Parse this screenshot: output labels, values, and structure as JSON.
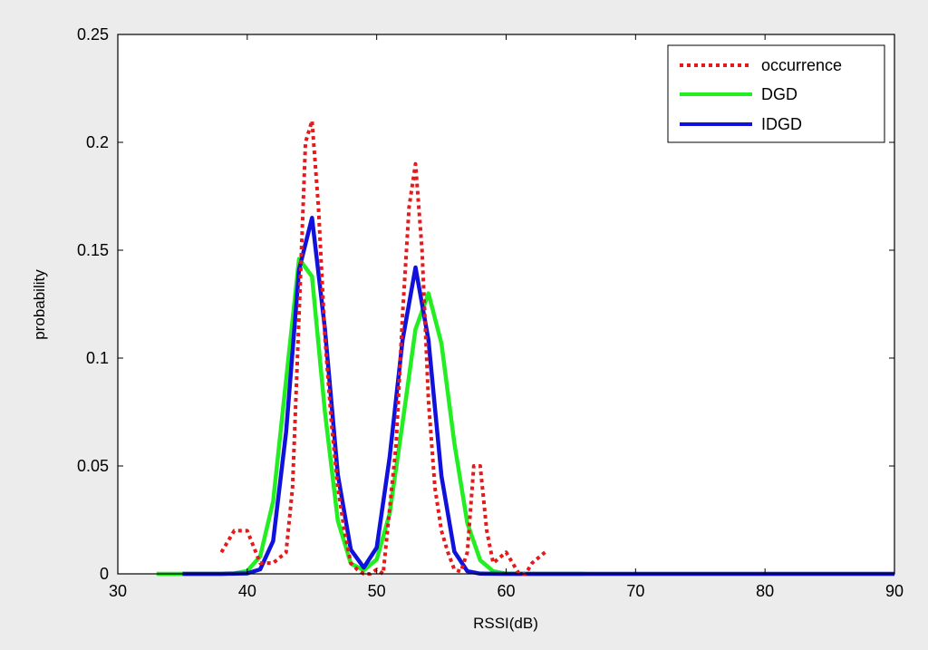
{
  "colors": {
    "figure_background": "#ececec",
    "axes_background": "#ffffff",
    "occurrence": "#e41a1c",
    "DGD": "#22ee22",
    "IDGD": "#1111dd"
  },
  "chart_data": {
    "type": "line",
    "xlabel": "RSSI(dB)",
    "ylabel": "probability",
    "xlim": [
      30,
      90
    ],
    "ylim": [
      0,
      0.25
    ],
    "xticks": [
      30,
      40,
      50,
      60,
      70,
      80,
      90
    ],
    "yticks": [
      0,
      0.05,
      0.1,
      0.15,
      0.2,
      0.25
    ],
    "xtick_labels": [
      "30",
      "40",
      "50",
      "60",
      "70",
      "80",
      "90"
    ],
    "ytick_labels": [
      "0",
      "0.05",
      "0.1",
      "0.15",
      "0.2",
      "0.25"
    ],
    "grid": false,
    "legend_position": "top-right",
    "series": [
      {
        "name": "occurrence",
        "style": "dotted",
        "x": [
          38,
          39,
          40,
          41,
          42,
          43,
          43.5,
          44,
          44.5,
          45,
          45.5,
          46,
          46.5,
          47,
          47.5,
          48,
          48.5,
          49,
          49.5,
          50,
          50.5,
          51,
          51.5,
          52,
          52.5,
          53,
          53.5,
          54,
          54.5,
          55,
          55.5,
          56,
          56.5,
          57,
          57.5,
          58,
          58.5,
          59,
          60,
          60.5,
          61,
          61.5,
          62,
          63
        ],
        "y": [
          0.01,
          0.02,
          0.02,
          0.005,
          0.005,
          0.01,
          0.04,
          0.12,
          0.2,
          0.21,
          0.17,
          0.11,
          0.07,
          0.04,
          0.02,
          0.005,
          0.002,
          0.0,
          0.0,
          0.002,
          0.0,
          0.03,
          0.06,
          0.12,
          0.17,
          0.19,
          0.15,
          0.08,
          0.04,
          0.02,
          0.01,
          0.002,
          0.001,
          0.01,
          0.05,
          0.05,
          0.02,
          0.005,
          0.01,
          0.005,
          0.0,
          0.0,
          0.005,
          0.01
        ]
      },
      {
        "name": "DGD",
        "style": "solid",
        "x": [
          33,
          36,
          38,
          39,
          40,
          41,
          42,
          43,
          44,
          45,
          46,
          47,
          48,
          49,
          50,
          51,
          52,
          53,
          54,
          55,
          56,
          57,
          58,
          59,
          60,
          62,
          66
        ],
        "y": [
          0,
          0,
          0,
          0.0002,
          0.0013,
          0.0081,
          0.0336,
          0.0898,
          0.146,
          0.1378,
          0.0752,
          0.0246,
          0.0048,
          0.0017,
          0.0067,
          0.0278,
          0.0699,
          0.1134,
          0.13,
          0.1068,
          0.0604,
          0.0235,
          0.0063,
          0.0012,
          0.0001,
          0,
          0
        ]
      },
      {
        "name": "IDGD",
        "style": "solid",
        "x": [
          35,
          38,
          40,
          41,
          42,
          43,
          44,
          45,
          46,
          47,
          48,
          49,
          50,
          51,
          52,
          53,
          54,
          55,
          56,
          57,
          58,
          60,
          64,
          90
        ],
        "y": [
          0,
          0,
          0.0002,
          0.0021,
          0.0152,
          0.0657,
          0.141,
          0.165,
          0.1137,
          0.0459,
          0.0112,
          0.0029,
          0.0122,
          0.0539,
          0.1083,
          0.142,
          0.1083,
          0.0454,
          0.0103,
          0.0012,
          0.0001,
          0,
          0,
          0
        ]
      }
    ]
  }
}
